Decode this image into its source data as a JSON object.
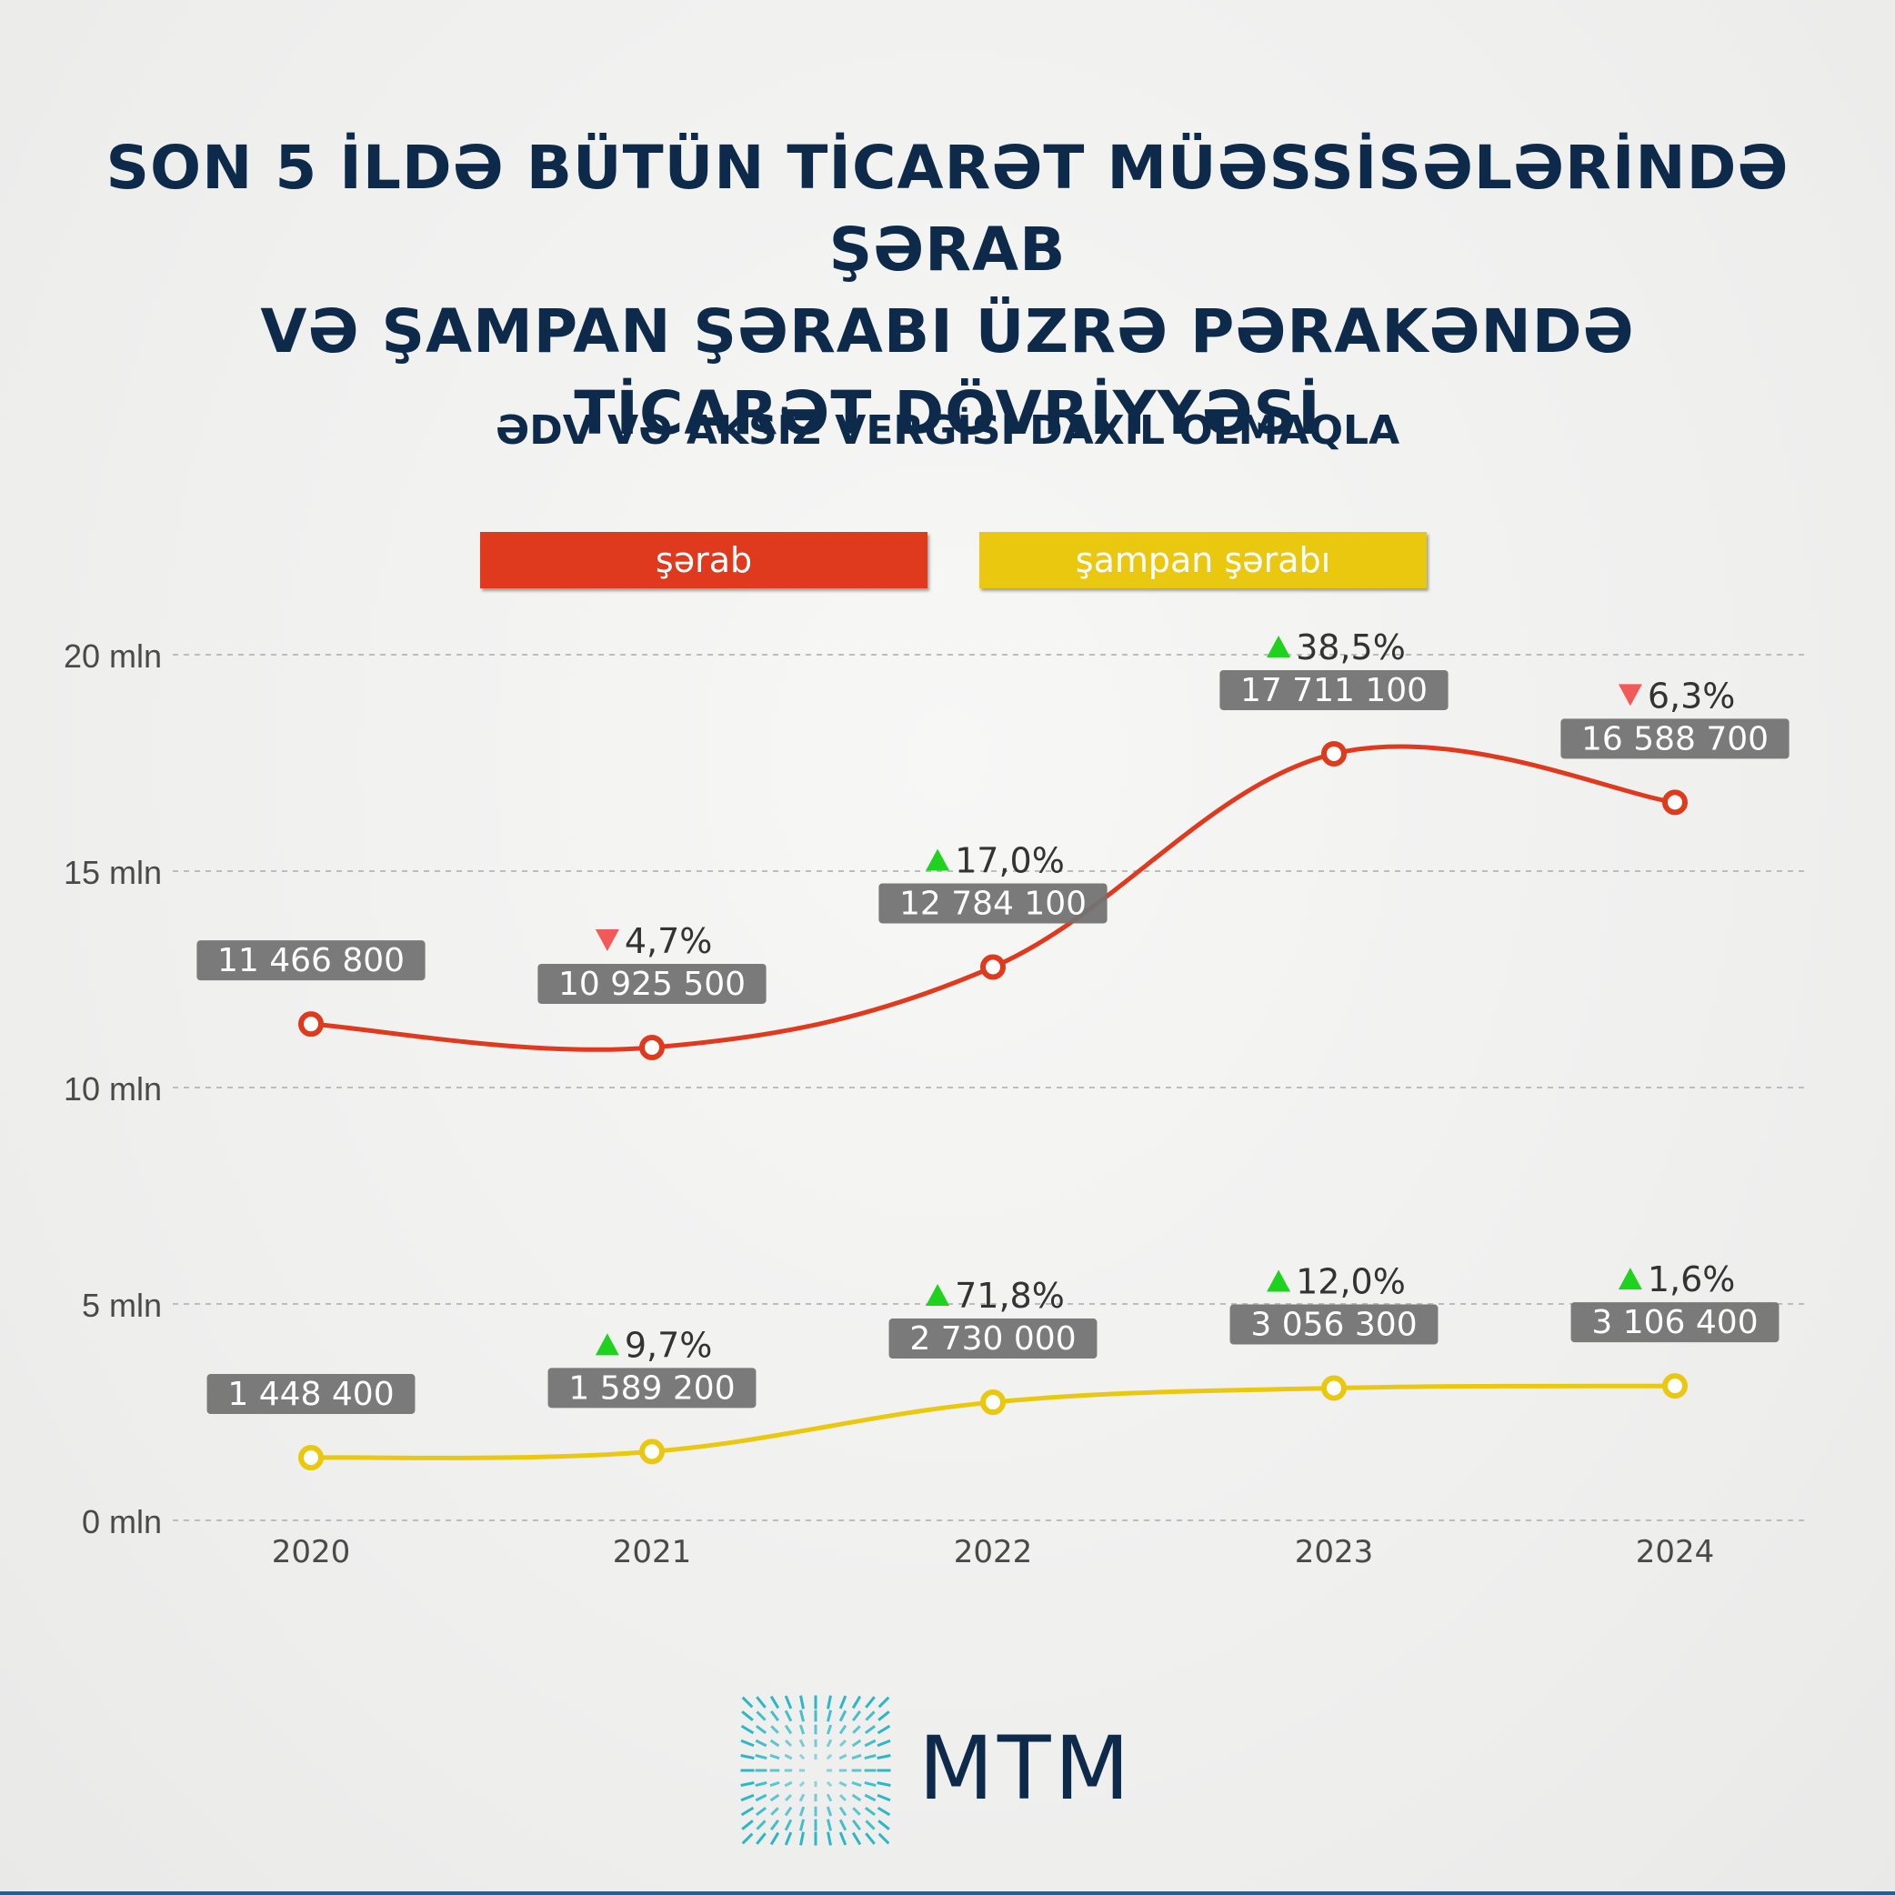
{
  "title_lines": [
    "SON 5 İLDƏ BÜTÜN TİCARƏT MÜƏSSİSƏLƏRİNDƏ ŞƏRAB",
    "VƏ ŞAMPAN ŞƏRABI ÜZRƏ PƏRAKƏNDƏ",
    "TİCARƏT DÖVRİYYƏSİ"
  ],
  "subtitle": "ƏDV VƏ AKSİZ VERGİSİ DAXİL OLMAQLA",
  "legend": [
    {
      "label": "şərab",
      "color": "#e03a1e"
    },
    {
      "label": "şampan şərabı",
      "color": "#eac80f"
    }
  ],
  "colors": {
    "title": "#0d2a4a",
    "label_box": "#737373",
    "up_arrow": "#1ed21e",
    "down_arrow": "#f25a5a",
    "grid": "#bdbdbd",
    "logo_accent": "#1fb3c4"
  },
  "chart_data": {
    "type": "line",
    "x": [
      "2020",
      "2021",
      "2022",
      "2023",
      "2024"
    ],
    "ylim": [
      0,
      20000000
    ],
    "yticks": [
      {
        "value": 0,
        "label": "0 mln"
      },
      {
        "value": 5000000,
        "label": "5 mln"
      },
      {
        "value": 10000000,
        "label": "10 mln"
      },
      {
        "value": 15000000,
        "label": "15 mln"
      },
      {
        "value": 20000000,
        "label": "20 mln"
      }
    ],
    "grid": true,
    "legend_position": "top",
    "series": [
      {
        "name": "şərab",
        "color": "#e03a1e",
        "values": [
          11466800,
          10925500,
          12784100,
          17711100,
          16588700
        ],
        "value_labels": [
          "11 466 800",
          "10 925 500",
          "12 784 100",
          "17 711 100",
          "16 588 700"
        ],
        "changes": [
          null,
          "4,7%",
          "17,0%",
          "38,5%",
          "6,3%"
        ],
        "change_dirs": [
          null,
          "down",
          "up",
          "up",
          "down"
        ]
      },
      {
        "name": "şampan şərabı",
        "color": "#eac80f",
        "values": [
          1448400,
          1589200,
          2730000,
          3056300,
          3106400
        ],
        "value_labels": [
          "1 448 400",
          "1 589 200",
          "2 730 000",
          "3 056 300",
          "3 106 400"
        ],
        "changes": [
          null,
          "9,7%",
          "71,8%",
          "12,0%",
          "1,6%"
        ],
        "change_dirs": [
          null,
          "up",
          "up",
          "up",
          "up"
        ]
      }
    ]
  },
  "logo": {
    "text": "MTM",
    "icon": "mtm-logo-icon"
  }
}
